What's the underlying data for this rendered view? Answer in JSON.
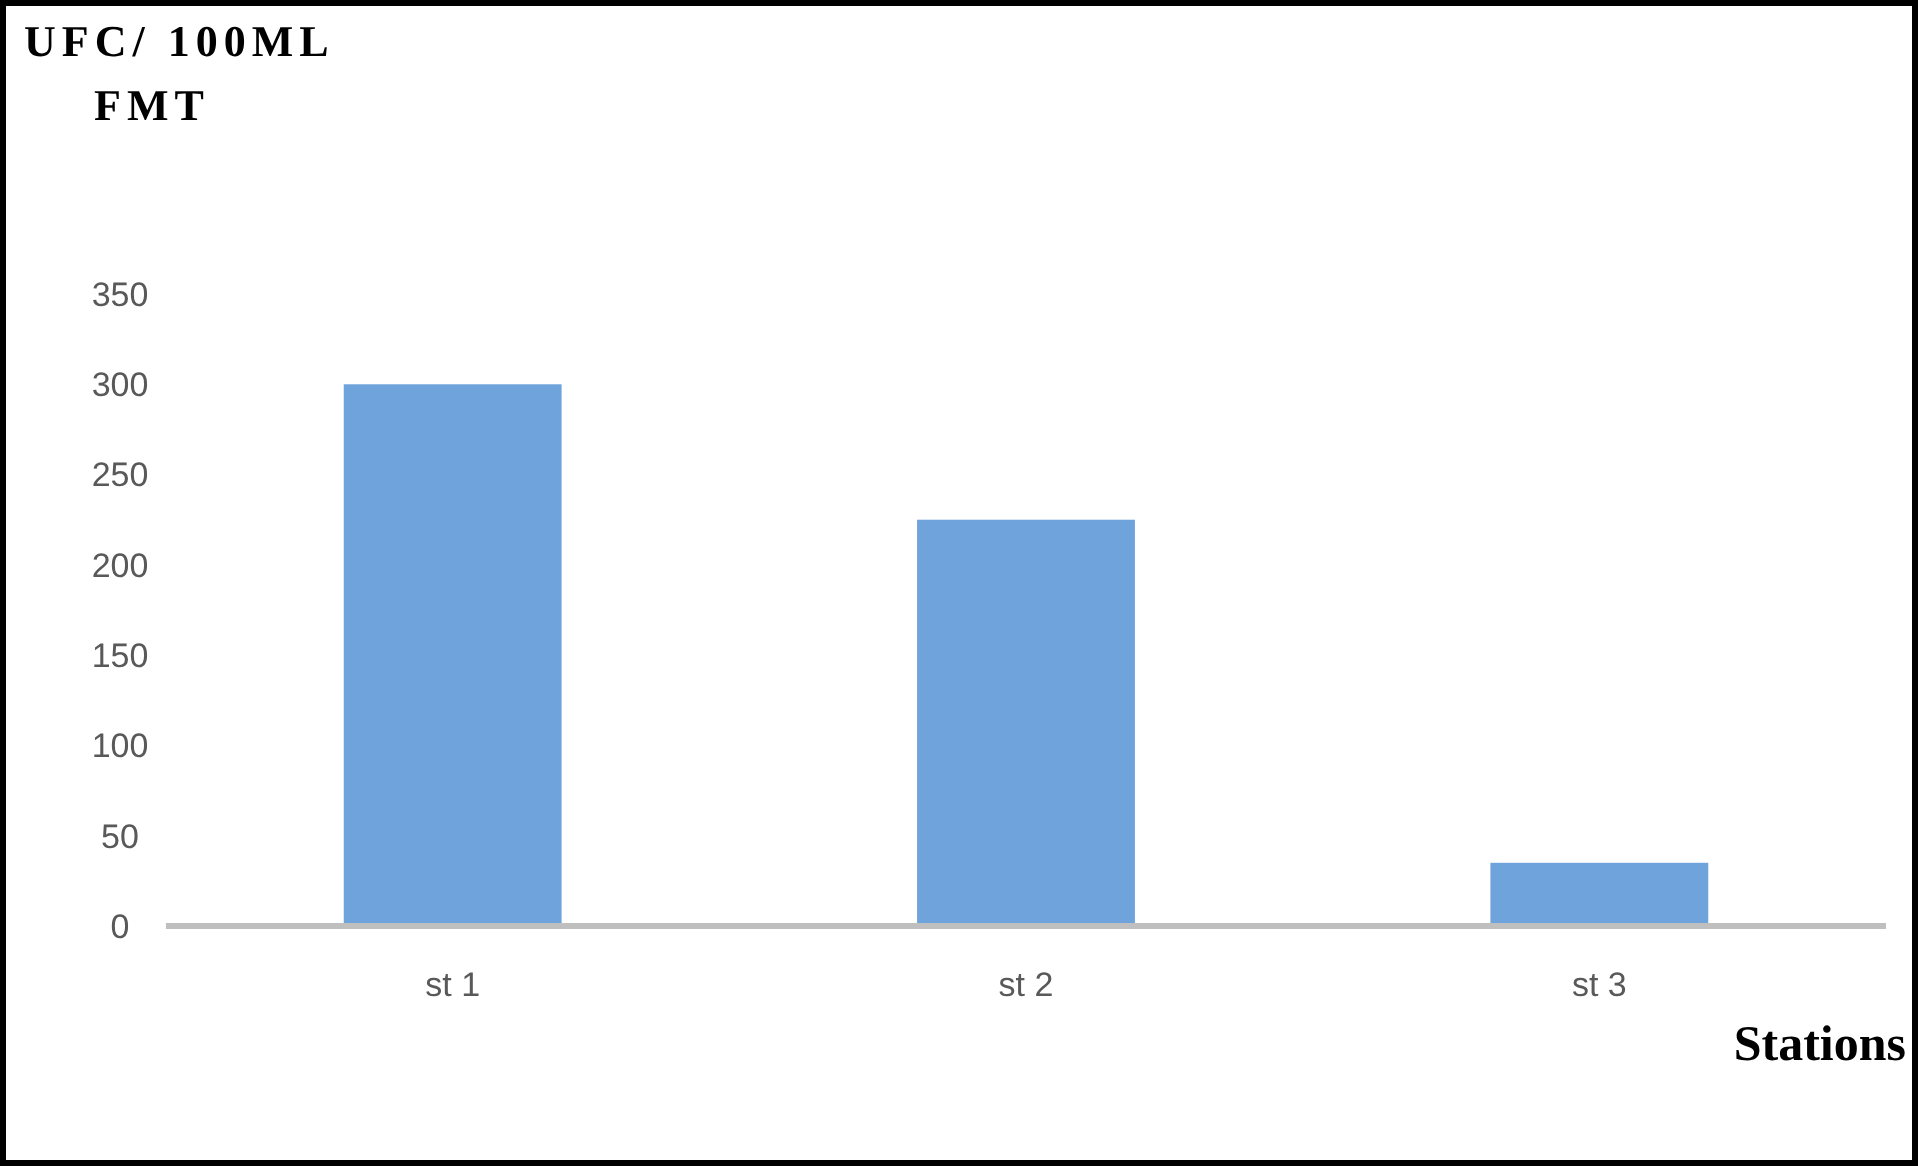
{
  "chart_data": {
    "type": "bar",
    "ylabel": "UFC/ 100ML\nFMT",
    "xlabel": "Stations",
    "categories": [
      "st 1",
      "st 2",
      "st 3"
    ],
    "values": [
      300,
      225,
      35
    ],
    "color": "#6fa3dc",
    "ylim": [
      0,
      350
    ],
    "yticks": [
      0,
      50,
      100,
      150,
      200,
      250,
      300,
      350
    ],
    "grid": false
  }
}
